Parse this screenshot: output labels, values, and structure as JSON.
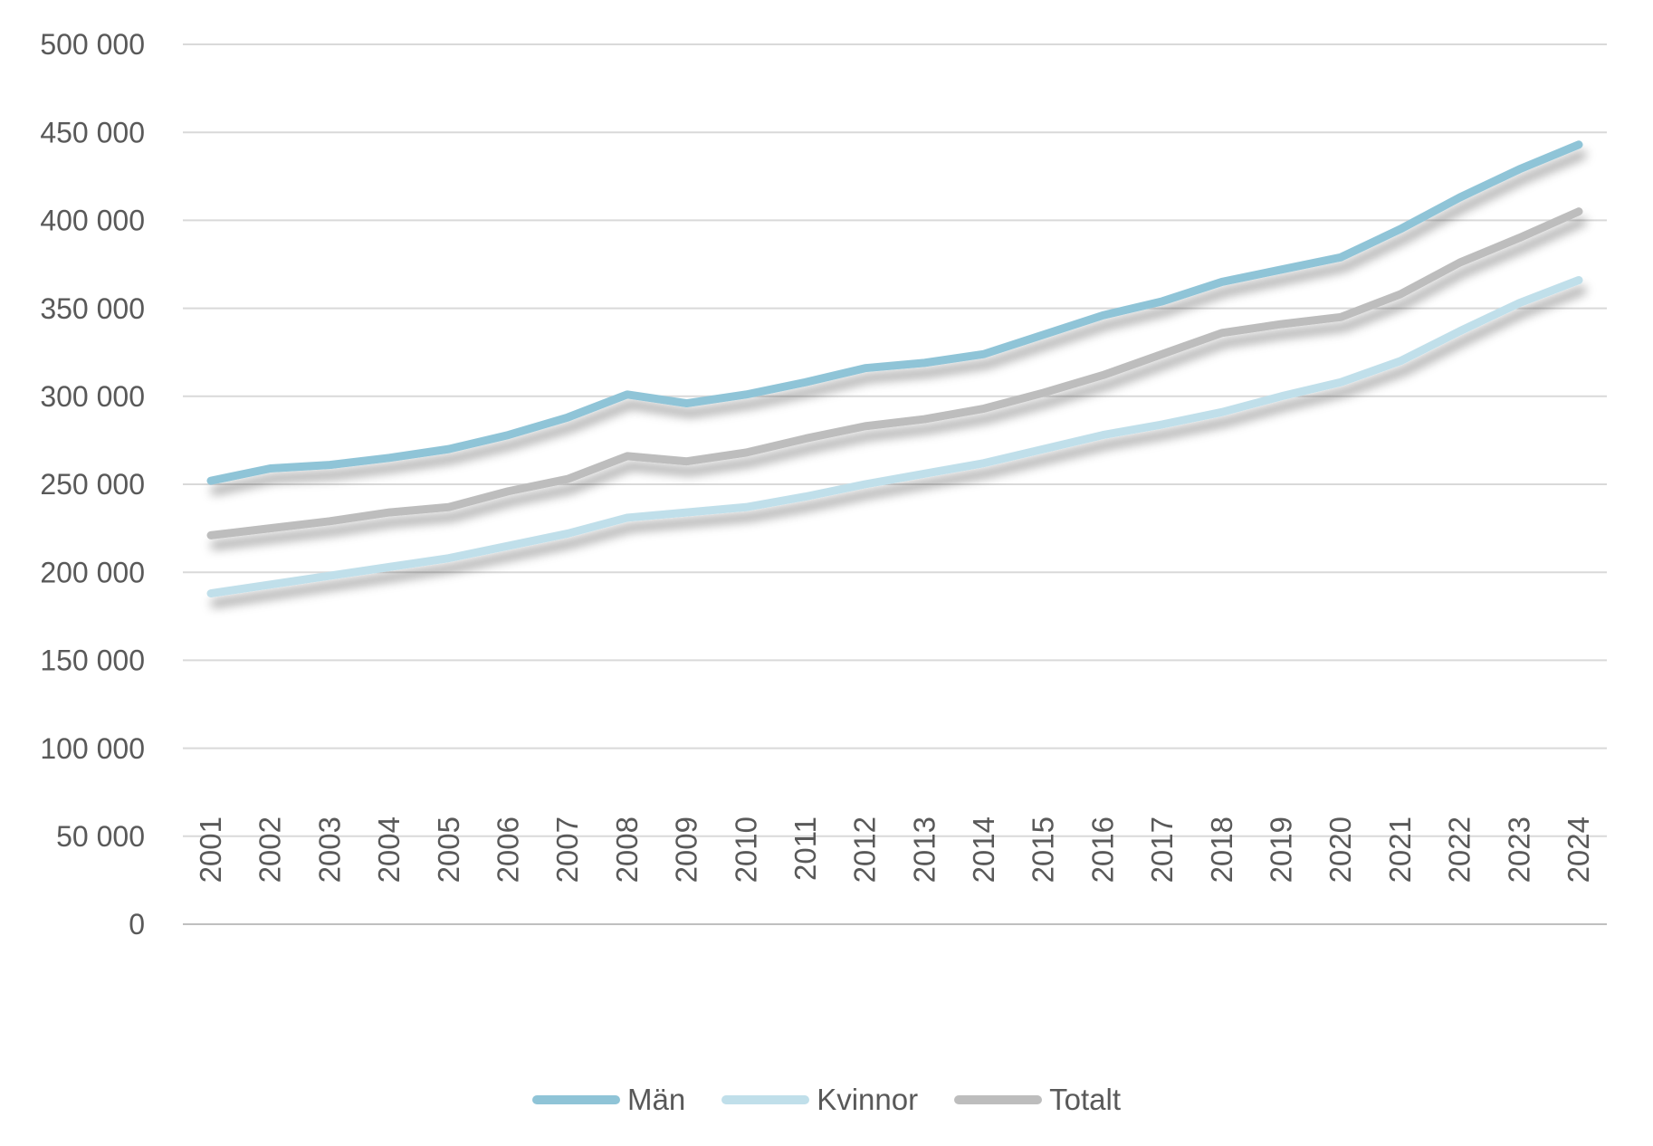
{
  "chart_data": {
    "type": "line",
    "title": "",
    "categories": [
      "2001",
      "2002",
      "2003",
      "2004",
      "2005",
      "2006",
      "2007",
      "2008",
      "2009",
      "2010",
      "2011",
      "2012",
      "2013",
      "2014",
      "2015",
      "2016",
      "2017",
      "2018",
      "2019",
      "2020",
      "2021",
      "2022",
      "2023",
      "2024"
    ],
    "series": [
      {
        "name": "Män",
        "color": "#8FC4D7",
        "values": [
          252000,
          259000,
          261000,
          265000,
          270000,
          278000,
          288000,
          301000,
          296000,
          301000,
          308000,
          316000,
          319000,
          324000,
          335000,
          346000,
          354000,
          365000,
          372000,
          379000,
          395000,
          413000,
          429000,
          443000
        ]
      },
      {
        "name": "Kvinnor",
        "color": "#C0DFEA",
        "values": [
          188000,
          193000,
          198000,
          203000,
          208000,
          215000,
          222000,
          231000,
          234000,
          237000,
          243000,
          250000,
          256000,
          262000,
          270000,
          278000,
          284000,
          291000,
          300000,
          308000,
          320000,
          337000,
          353000,
          366000
        ]
      },
      {
        "name": "Totalt",
        "color": "#BDBDBD",
        "values": [
          221000,
          225000,
          229000,
          234000,
          237000,
          246000,
          253000,
          266000,
          263000,
          268000,
          276000,
          283000,
          287000,
          293000,
          302000,
          312000,
          324000,
          336000,
          341000,
          345000,
          358000,
          376000,
          390000,
          405000
        ]
      }
    ],
    "ylim": [
      0,
      500000
    ],
    "y_tick_step": 50000,
    "y_tick_labels": [
      "0",
      "50 000",
      "100 000",
      "150 000",
      "200 000",
      "250 000",
      "300 000",
      "350 000",
      "400 000",
      "450 000",
      "500 000"
    ],
    "x_tick_rotation": -90,
    "grid": "horizontal",
    "legend_position": "bottom",
    "colors": {
      "axis_text": "#595959",
      "gridline": "#D9D9D9",
      "axis_line": "#BFBFBF",
      "background": "#FFFFFF"
    }
  }
}
